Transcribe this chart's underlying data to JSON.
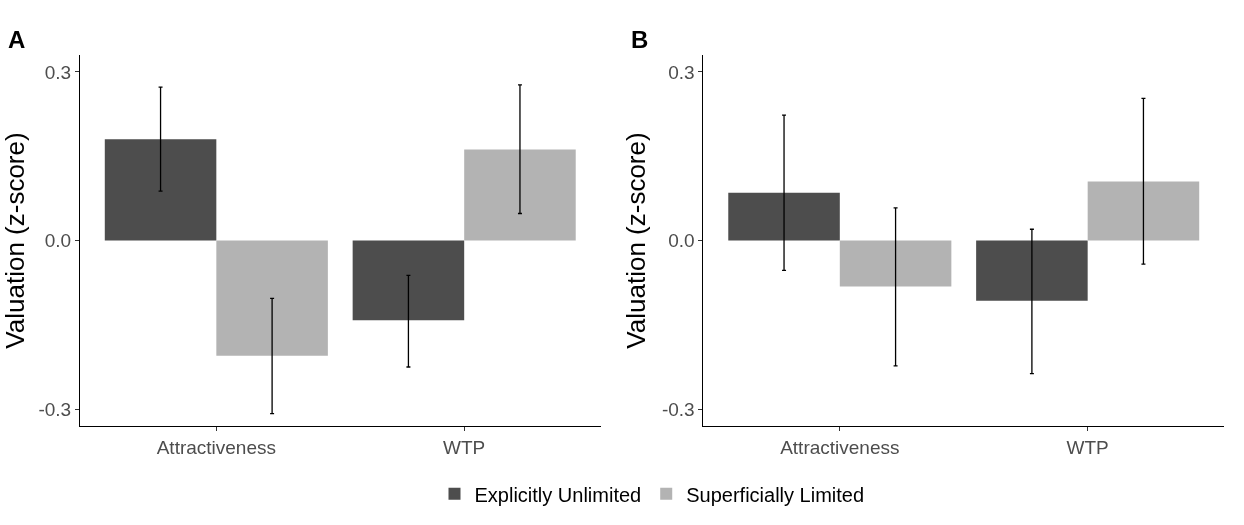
{
  "chart_data": [
    {
      "type": "bar",
      "title": "A",
      "ylabel": "Valuation (z-score)",
      "categories": [
        "Attractiveness",
        "WTP"
      ],
      "series": [
        {
          "name": "Explicitly Unlimited",
          "color": "#4d4d4d",
          "values": [
            0.18,
            -0.142
          ],
          "errors": [
            [
              0.088,
              0.273
            ],
            [
              -0.225,
              -0.062
            ]
          ]
        },
        {
          "name": "Superficially Limited",
          "color": "#b3b3b3",
          "values": [
            -0.205,
            0.162
          ],
          "errors": [
            [
              -0.308,
              -0.103
            ],
            [
              0.048,
              0.277
            ]
          ]
        }
      ],
      "ylim": [
        -0.33,
        0.33
      ],
      "yticks": [
        {
          "value": -0.3,
          "label": "-0.3"
        },
        {
          "value": 0,
          "label": "0.0"
        },
        {
          "value": 0.3,
          "label": "0.3"
        }
      ],
      "legend": "bottom"
    },
    {
      "type": "bar",
      "title": "B",
      "ylabel": "Valuation (z-score)",
      "categories": [
        "Attractiveness",
        "WTP"
      ],
      "series": [
        {
          "name": "Explicitly Unlimited",
          "color": "#4d4d4d",
          "values": [
            0.085,
            -0.107
          ],
          "errors": [
            [
              -0.053,
              0.223
            ],
            [
              -0.237,
              0.02
            ]
          ]
        },
        {
          "name": "Superficially Limited",
          "color": "#b3b3b3",
          "values": [
            -0.082,
            0.105
          ],
          "errors": [
            [
              -0.223,
              0.058
            ],
            [
              -0.042,
              0.253
            ]
          ]
        }
      ],
      "ylim": [
        -0.33,
        0.33
      ],
      "yticks": [
        {
          "value": -0.3,
          "label": "-0.3"
        },
        {
          "value": 0,
          "label": "0.0"
        },
        {
          "value": 0.3,
          "label": "0.3"
        }
      ],
      "legend": "bottom"
    }
  ]
}
